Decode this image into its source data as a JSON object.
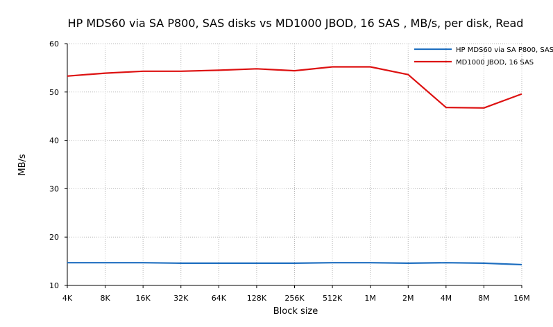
{
  "chart_data": {
    "type": "line",
    "title": "HP MDS60 via SA P800, SAS disks vs MD1000 JBOD, 16 SAS , MB/s, per disk, Read",
    "xlabel": "Block size",
    "ylabel": "MB/s",
    "categories": [
      "4K",
      "8K",
      "16K",
      "32K",
      "64K",
      "128K",
      "256K",
      "512K",
      "1M",
      "2M",
      "4M",
      "8M",
      "16M"
    ],
    "yticks": [
      "10",
      "20",
      "30",
      "40",
      "50",
      "60"
    ],
    "ylim": [
      10,
      60
    ],
    "grid": true,
    "legend_position": "top-right",
    "series": [
      {
        "name": "HP MDS60 via SA P800, SAS",
        "color": "#1f6fc0",
        "values": [
          14.7,
          14.7,
          14.7,
          14.6,
          14.6,
          14.6,
          14.6,
          14.7,
          14.7,
          14.6,
          14.7,
          14.6,
          14.3
        ]
      },
      {
        "name": "MD1000 JBOD, 16 SAS",
        "color": "#dd1111",
        "values": [
          53.3,
          53.9,
          54.3,
          54.3,
          54.5,
          54.8,
          54.4,
          55.2,
          55.2,
          53.6,
          46.8,
          46.7,
          49.6
        ]
      }
    ]
  }
}
